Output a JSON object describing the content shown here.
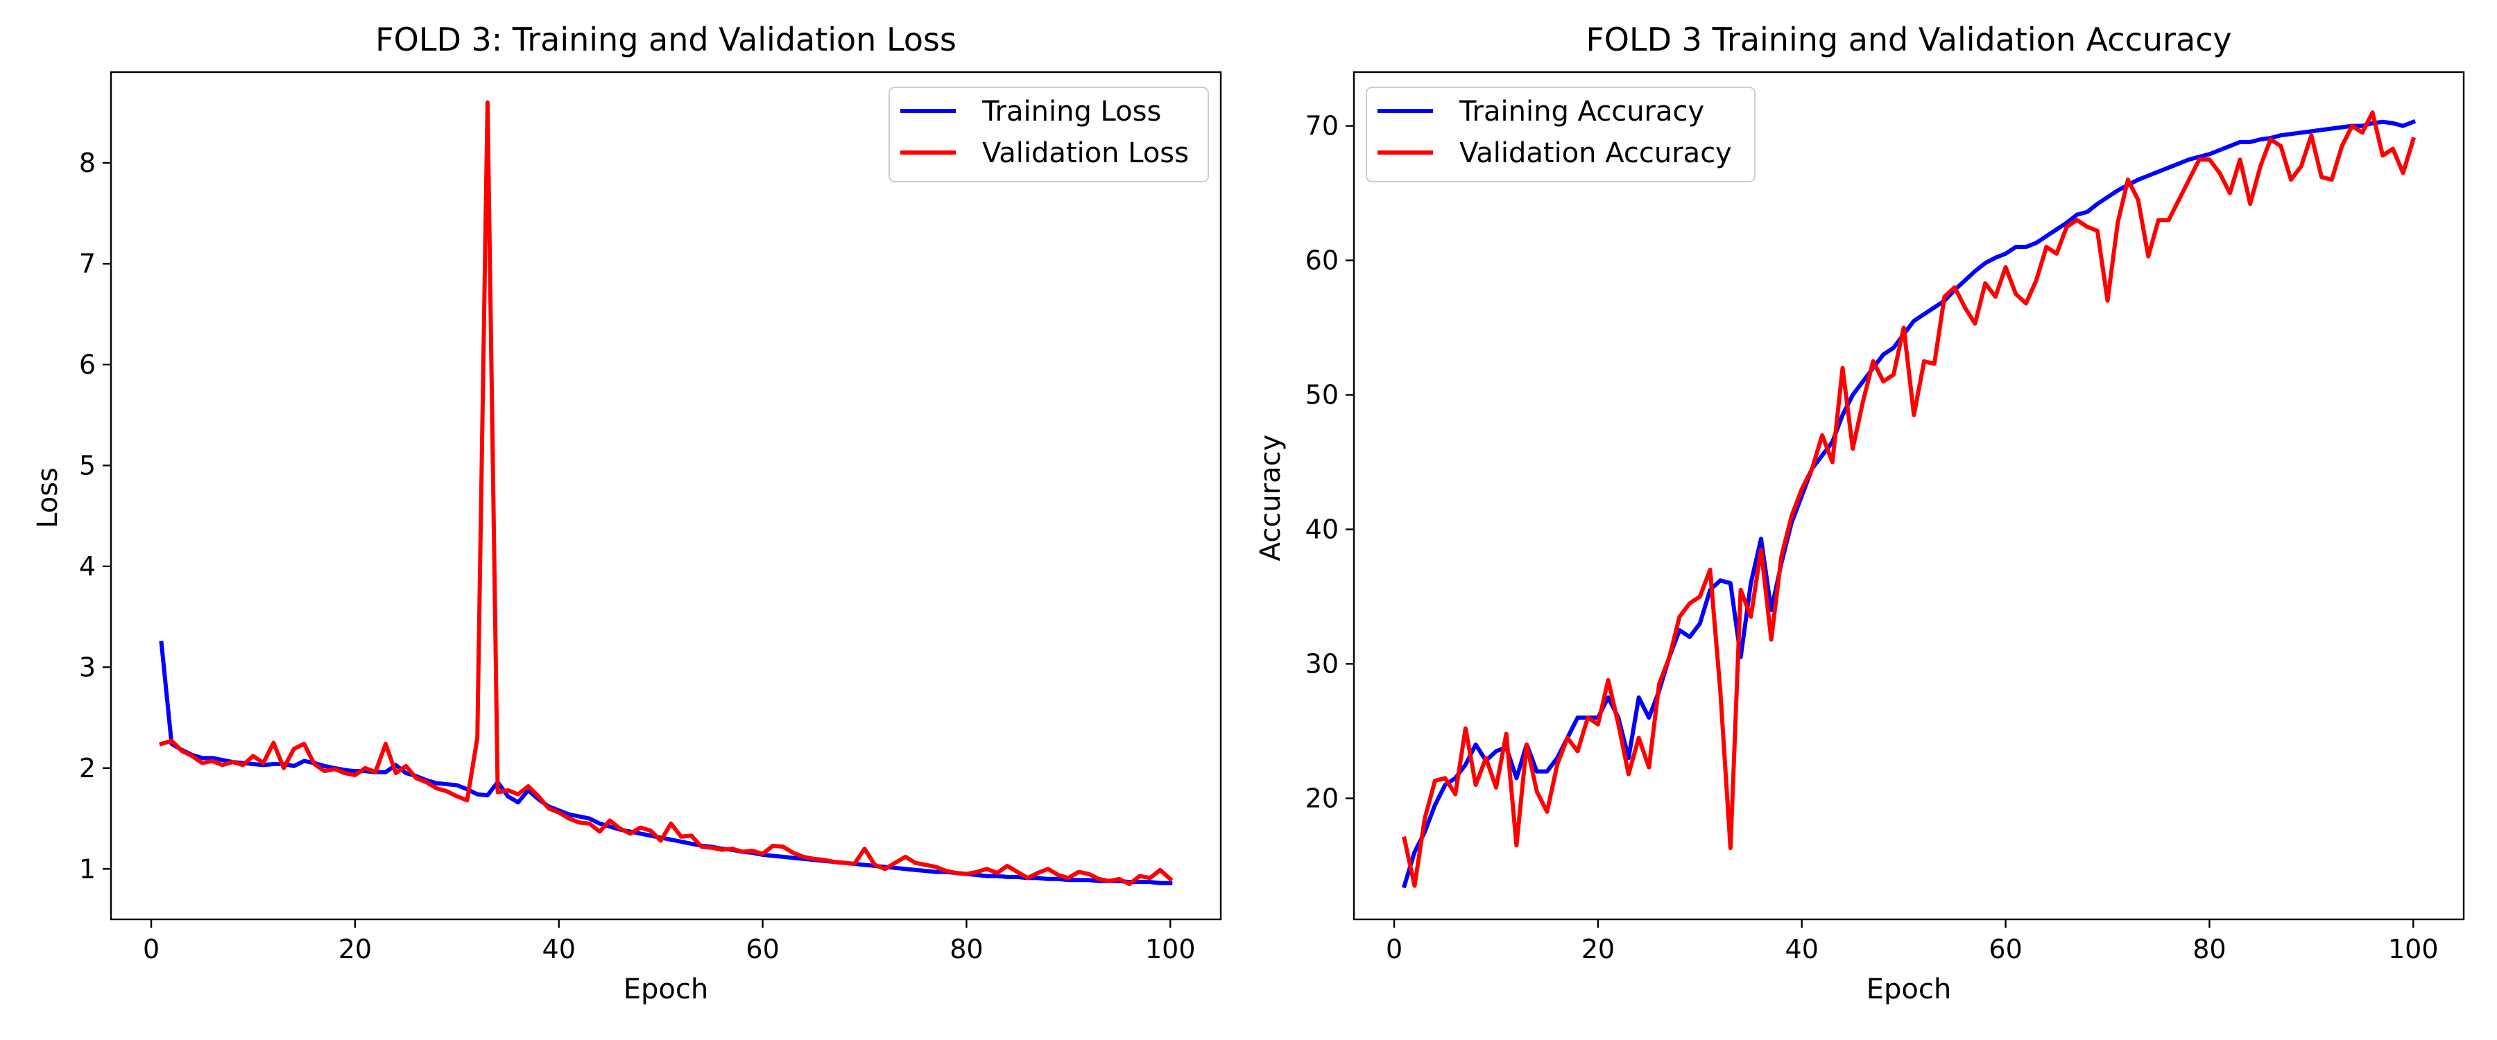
{
  "chart_data": [
    {
      "type": "line",
      "title": "FOLD 3: Training and Validation Loss",
      "xlabel": "Epoch",
      "ylabel": "Loss",
      "xlim": [
        -3.95,
        104.95
      ],
      "ylim": [
        0.5,
        8.9
      ],
      "xticks": [
        0,
        20,
        40,
        60,
        80,
        100
      ],
      "yticks": [
        1,
        2,
        3,
        4,
        5,
        6,
        7,
        8
      ],
      "grid": false,
      "legend_position": "top-right",
      "series": [
        {
          "name": "Training Loss",
          "color": "#0000ff",
          "values": [
            3.24,
            2.24,
            2.18,
            2.13,
            2.1,
            2.1,
            2.08,
            2.06,
            2.05,
            2.04,
            2.03,
            2.04,
            2.04,
            2.02,
            2.07,
            2.05,
            2.02,
            2.0,
            1.98,
            1.97,
            1.97,
            1.96,
            1.96,
            2.03,
            1.95,
            1.92,
            1.88,
            1.85,
            1.84,
            1.83,
            1.79,
            1.74,
            1.73,
            1.86,
            1.72,
            1.66,
            1.78,
            1.69,
            1.62,
            1.58,
            1.54,
            1.52,
            1.5,
            1.45,
            1.42,
            1.39,
            1.37,
            1.35,
            1.33,
            1.31,
            1.29,
            1.27,
            1.25,
            1.23,
            1.22,
            1.2,
            1.19,
            1.17,
            1.16,
            1.14,
            1.13,
            1.12,
            1.11,
            1.1,
            1.09,
            1.08,
            1.07,
            1.06,
            1.05,
            1.04,
            1.03,
            1.02,
            1.01,
            1.0,
            0.99,
            0.98,
            0.97,
            0.97,
            0.96,
            0.95,
            0.94,
            0.93,
            0.93,
            0.92,
            0.92,
            0.91,
            0.91,
            0.9,
            0.9,
            0.89,
            0.89,
            0.89,
            0.88,
            0.88,
            0.88,
            0.87,
            0.87,
            0.87,
            0.86,
            0.86
          ]
        },
        {
          "name": "Validation Loss",
          "color": "#ff0000",
          "values": [
            2.24,
            2.27,
            2.17,
            2.12,
            2.05,
            2.07,
            2.03,
            2.06,
            2.03,
            2.12,
            2.05,
            2.25,
            2.0,
            2.19,
            2.24,
            2.04,
            1.97,
            1.99,
            1.95,
            1.93,
            2.0,
            1.96,
            2.24,
            1.95,
            2.02,
            1.9,
            1.86,
            1.8,
            1.77,
            1.72,
            1.68,
            2.3,
            8.6,
            1.76,
            1.78,
            1.74,
            1.82,
            1.72,
            1.6,
            1.56,
            1.5,
            1.46,
            1.45,
            1.37,
            1.48,
            1.4,
            1.35,
            1.41,
            1.38,
            1.28,
            1.45,
            1.32,
            1.33,
            1.22,
            1.21,
            1.19,
            1.2,
            1.17,
            1.18,
            1.15,
            1.23,
            1.22,
            1.16,
            1.12,
            1.1,
            1.09,
            1.07,
            1.06,
            1.05,
            1.2,
            1.04,
            1.0,
            1.06,
            1.12,
            1.06,
            1.04,
            1.02,
            0.98,
            0.96,
            0.95,
            0.97,
            1.0,
            0.96,
            1.03,
            0.97,
            0.91,
            0.96,
            1.0,
            0.94,
            0.91,
            0.97,
            0.95,
            0.9,
            0.88,
            0.9,
            0.85,
            0.93,
            0.91,
            0.99,
            0.9
          ]
        }
      ]
    },
    {
      "type": "line",
      "title": "FOLD 3 Training and Validation Accuracy",
      "xlabel": "Epoch",
      "ylabel": "Accuracy",
      "xlim": [
        -3.95,
        104.95
      ],
      "ylim": [
        11.0,
        74.0
      ],
      "xticks": [
        0,
        20,
        40,
        60,
        80,
        100
      ],
      "yticks": [
        20,
        30,
        40,
        50,
        60,
        70
      ],
      "grid": false,
      "legend_position": "top-left",
      "series": [
        {
          "name": "Training Accuracy",
          "color": "#0000ff",
          "values": [
            13.5,
            16.0,
            17.5,
            19.5,
            21.0,
            21.5,
            22.5,
            24.0,
            22.8,
            23.5,
            23.8,
            21.5,
            24.0,
            22.0,
            22.0,
            23.0,
            24.5,
            26.0,
            26.0,
            26.0,
            27.5,
            26.0,
            23.0,
            27.5,
            26.0,
            28.0,
            30.5,
            32.5,
            32.0,
            33.0,
            35.5,
            36.2,
            36.0,
            30.5,
            36.0,
            39.3,
            34.0,
            37.5,
            40.5,
            42.5,
            44.5,
            45.5,
            46.5,
            48.5,
            50.0,
            51.0,
            52.0,
            53.0,
            53.5,
            54.5,
            55.5,
            56.0,
            56.5,
            57.0,
            57.8,
            58.5,
            59.2,
            59.8,
            60.2,
            60.5,
            61.0,
            61.0,
            61.3,
            61.8,
            62.3,
            62.8,
            63.4,
            63.6,
            64.2,
            64.7,
            65.2,
            65.6,
            66.0,
            66.3,
            66.6,
            66.9,
            67.2,
            67.5,
            67.7,
            67.9,
            68.2,
            68.5,
            68.8,
            68.8,
            69.0,
            69.1,
            69.3,
            69.4,
            69.5,
            69.6,
            69.7,
            69.8,
            69.9,
            70.0,
            70.0,
            70.2,
            70.3,
            70.2,
            70.0,
            70.3
          ]
        },
        {
          "name": "Validation Accuracy",
          "color": "#ff0000",
          "values": [
            17.0,
            13.5,
            18.5,
            21.3,
            21.5,
            20.3,
            25.2,
            21.0,
            23.0,
            20.8,
            24.8,
            16.5,
            24.0,
            20.5,
            19.0,
            22.5,
            24.5,
            23.5,
            26.0,
            25.5,
            28.8,
            25.5,
            21.8,
            24.5,
            22.3,
            28.5,
            30.5,
            33.5,
            34.5,
            35.0,
            37.0,
            28.0,
            16.3,
            35.5,
            33.5,
            38.5,
            31.8,
            38.0,
            41.0,
            43.0,
            44.5,
            47.0,
            45.0,
            52.0,
            46.0,
            49.5,
            52.5,
            51.0,
            51.5,
            55.0,
            48.5,
            52.5,
            52.3,
            57.3,
            58.0,
            56.5,
            55.3,
            58.3,
            57.3,
            59.5,
            57.5,
            56.8,
            58.5,
            61.0,
            60.5,
            62.5,
            63.0,
            62.5,
            62.2,
            57.0,
            62.8,
            66.0,
            64.5,
            60.3,
            63.0,
            63.0,
            64.5,
            66.0,
            67.5,
            67.5,
            66.5,
            65.0,
            67.5,
            64.2,
            67.0,
            69.0,
            68.5,
            66.0,
            67.0,
            69.3,
            66.2,
            66.0,
            68.5,
            70.0,
            69.5,
            71.0,
            67.8,
            68.3,
            66.5,
            69.0
          ]
        }
      ]
    }
  ]
}
